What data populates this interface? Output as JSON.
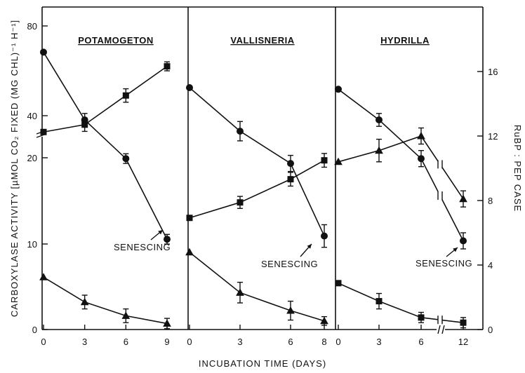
{
  "figure": {
    "xlabel": "INCUBATION TIME (DAYS)",
    "ylabel_left": "CARBOXYLASE ACTIVITY [µMOL CO₂ FIXED (MG CHL)⁻¹ H⁻¹]",
    "ylabel_right": "RuBP : PEP CASE",
    "left_ticks_lower": [
      "0",
      "10",
      "20"
    ],
    "left_ticks_upper": [
      "40",
      "80"
    ],
    "right_ticks": [
      "0",
      "4",
      "8",
      "12",
      "16"
    ]
  },
  "chart_data": [
    {
      "type": "line",
      "title": "POTAMOGETON",
      "x_ticks": [
        "0",
        "3",
        "6",
        "9"
      ],
      "x": [
        0,
        3,
        6,
        9
      ],
      "series": [
        {
          "marker": "circle",
          "axis": "right",
          "values": [
            17.2,
            13.0,
            10.6,
            5.6
          ],
          "errors": [
            0,
            0.4,
            0.3,
            0.3
          ]
        },
        {
          "marker": "square",
          "axis": "left",
          "values": [
            23,
            36,
            49,
            62
          ],
          "errors": [
            0,
            3,
            3,
            2
          ]
        },
        {
          "marker": "triangle",
          "axis": "left",
          "values": [
            6.1,
            3.2,
            1.6,
            0.7
          ],
          "errors": [
            0,
            0.8,
            0.8,
            0.6
          ]
        }
      ],
      "annotations": [
        {
          "text": "SENESCING"
        }
      ]
    },
    {
      "type": "line",
      "title": "VALLISNERIA",
      "x_ticks": [
        "0",
        "3",
        "6",
        "8"
      ],
      "x": [
        0,
        3,
        6,
        8
      ],
      "series": [
        {
          "marker": "circle",
          "axis": "right",
          "values": [
            15.0,
            12.3,
            10.3,
            5.8
          ],
          "errors": [
            0,
            0.6,
            0.5,
            0.7
          ]
        },
        {
          "marker": "square",
          "axis": "left",
          "values": [
            13.0,
            14.8,
            17.5,
            19.7
          ],
          "errors": [
            0,
            0.7,
            0.8,
            0.8
          ]
        },
        {
          "marker": "triangle",
          "axis": "left",
          "values": [
            9.0,
            4.3,
            2.2,
            1.0
          ],
          "errors": [
            0,
            1.2,
            1.1,
            0.5
          ]
        }
      ],
      "annotations": [
        {
          "text": "SENESCING"
        }
      ]
    },
    {
      "type": "line",
      "title": "HYDRILLA",
      "x_ticks": [
        "0",
        "3",
        "6",
        "12"
      ],
      "x": [
        0,
        3,
        6,
        12
      ],
      "x_break_between": [
        6,
        12
      ],
      "series": [
        {
          "marker": "circle",
          "axis": "right",
          "values": [
            14.9,
            13.0,
            10.6,
            5.5
          ],
          "errors": [
            0,
            0.4,
            0.5,
            0.5
          ]
        },
        {
          "marker": "triangle",
          "axis": "right",
          "values": [
            10.4,
            11.1,
            12.0,
            8.1
          ],
          "errors": [
            0,
            0.7,
            0.5,
            0.5
          ]
        },
        {
          "marker": "square",
          "axis": "left",
          "values": [
            5.4,
            3.3,
            1.4,
            0.8
          ],
          "errors": [
            0,
            0.9,
            0.6,
            0.6
          ]
        }
      ],
      "annotations": [
        {
          "text": "SENESCING"
        }
      ]
    }
  ]
}
